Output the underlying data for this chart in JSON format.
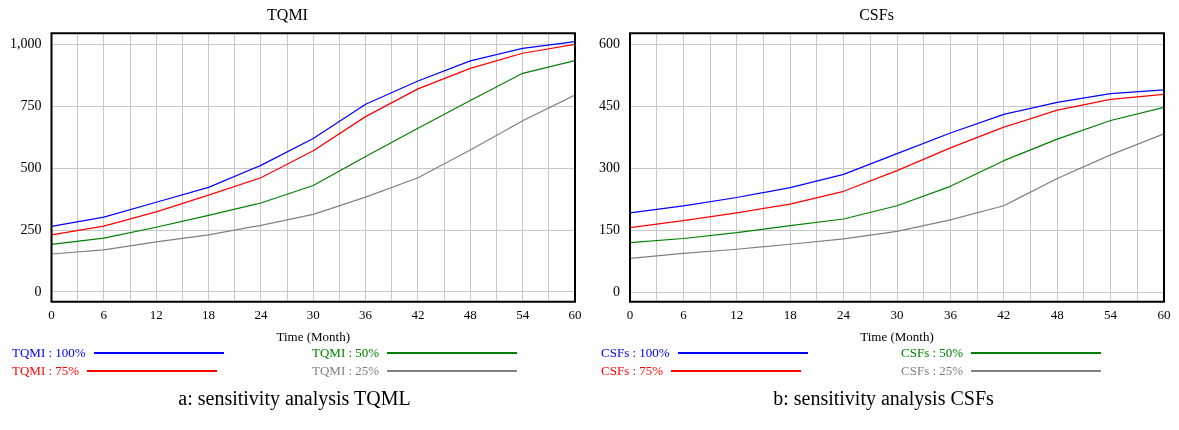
{
  "chart_data": [
    {
      "type": "line",
      "title": "TQMI",
      "xlabel": "Time (Month)",
      "legend": "bottom",
      "grid": true,
      "marker": "none",
      "line_style": "solid",
      "annotations": [
        "a: sensitivity analysis TQML"
      ],
      "x": [
        0,
        6,
        12,
        18,
        24,
        30,
        36,
        42,
        48,
        54,
        60
      ],
      "xlim": [
        0,
        60
      ],
      "xticks": [
        0,
        {
          "value": 3,
          "label": null
        },
        6,
        {
          "value": 9,
          "label": null
        },
        12,
        {
          "value": 15,
          "label": null
        },
        18,
        {
          "value": 21,
          "label": null
        },
        24,
        {
          "value": 27,
          "label": null
        },
        30,
        {
          "value": 33,
          "label": null
        },
        36,
        {
          "value": 39,
          "label": null
        },
        42,
        {
          "value": 45,
          "label": null
        },
        48,
        {
          "value": 51,
          "label": null
        },
        54,
        {
          "value": 57,
          "label": null
        },
        60
      ],
      "ylim": [
        -40,
        1045
      ],
      "yticks": [
        0,
        250,
        500,
        750,
        {
          "value": 1000,
          "label": "1,000"
        }
      ],
      "series": [
        {
          "name": "TQMI : 100%",
          "color": "#0000ff",
          "values": [
            265,
            302,
            362,
            422,
            511,
            620,
            758,
            852,
            933,
            984,
            1011
          ]
        },
        {
          "name": "TQMI : 75%",
          "color": "#ff0000",
          "values": [
            230,
            266,
            323,
            391,
            461,
            570,
            708,
            820,
            903,
            964,
            1000
          ]
        },
        {
          "name": "TQMI : 50%",
          "color": "#008000",
          "values": [
            192,
            217,
            261,
            309,
            359,
            430,
            547,
            661,
            773,
            883,
            934
          ]
        },
        {
          "name": "TQMI : 25%",
          "color": "#808080",
          "values": [
            153,
            170,
            202,
            230,
            269,
            313,
            383,
            461,
            573,
            691,
            795
          ]
        }
      ]
    },
    {
      "type": "line",
      "title": "CSFs",
      "xlabel": "Time (Month)",
      "legend": "bottom",
      "grid": true,
      "marker": "none",
      "line_style": "solid",
      "annotations": [
        "b: sensitivity analysis CSFs"
      ],
      "x": [
        0,
        6,
        12,
        18,
        24,
        30,
        36,
        42,
        48,
        54,
        60
      ],
      "xlim": [
        0,
        60
      ],
      "xticks": [
        0,
        {
          "value": 3,
          "label": null
        },
        6,
        {
          "value": 9,
          "label": null
        },
        12,
        {
          "value": 15,
          "label": null
        },
        18,
        {
          "value": 21,
          "label": null
        },
        24,
        {
          "value": 27,
          "label": null
        },
        30,
        {
          "value": 33,
          "label": null
        },
        36,
        {
          "value": 39,
          "label": null
        },
        42,
        {
          "value": 45,
          "label": null
        },
        48,
        {
          "value": 51,
          "label": null
        },
        54,
        {
          "value": 57,
          "label": null
        },
        60
      ],
      "ylim": [
        -22,
        627
      ],
      "yticks": [
        0,
        150,
        300,
        450,
        600
      ],
      "series": [
        {
          "name": "CSFs : 100%",
          "color": "#0000ff",
          "values": [
            193,
            210,
            230,
            254,
            286,
            336,
            386,
            431,
            460,
            481,
            490
          ]
        },
        {
          "name": "CSFs : 75%",
          "color": "#ff0000",
          "values": [
            157,
            174,
            193,
            214,
            245,
            295,
            350,
            400,
            441,
            467,
            479
          ]
        },
        {
          "name": "CSFs : 50%",
          "color": "#008000",
          "values": [
            121,
            131,
            145,
            162,
            178,
            210,
            257,
            319,
            371,
            416,
            448
          ]
        },
        {
          "name": "CSFs : 25%",
          "color": "#808080",
          "values": [
            83,
            95,
            105,
            117,
            130,
            148,
            176,
            210,
            276,
            333,
            384
          ]
        }
      ]
    }
  ]
}
